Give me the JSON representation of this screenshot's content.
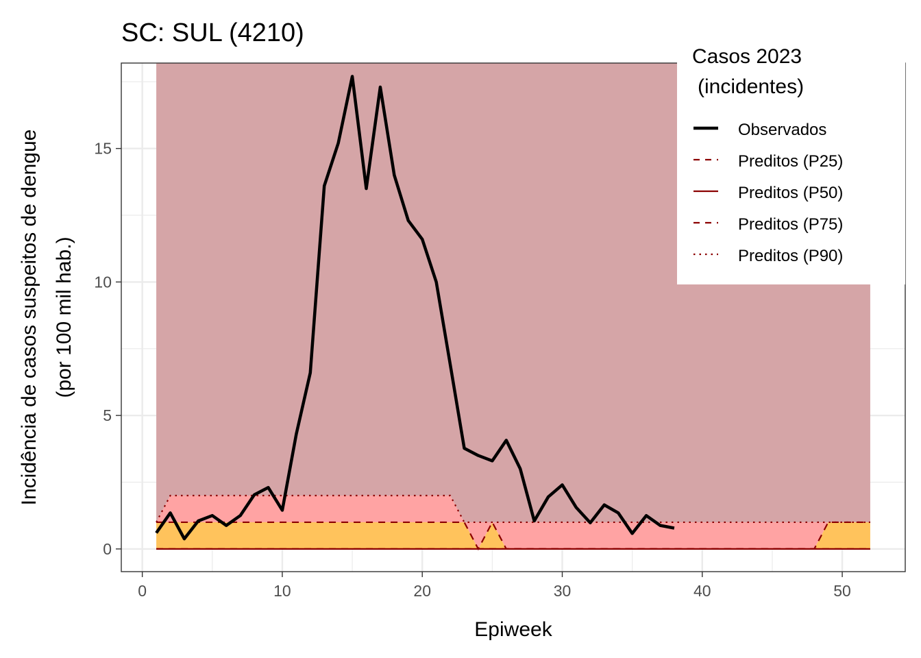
{
  "chart_data": {
    "type": "line",
    "title": "SC: SUL (4210)",
    "xlabel": "Epiweek",
    "ylabel": [
      "Incidência de casos suspeitos de dengue",
      "(por 100 mil hab.)"
    ],
    "xlim": [
      -1.5,
      54.5
    ],
    "ylim": [
      -0.85,
      18.2
    ],
    "x_ticks": [
      0,
      10,
      20,
      30,
      40,
      50
    ],
    "y_ticks": [
      0,
      5,
      10,
      15
    ],
    "grid": true,
    "legend": {
      "title": [
        "Casos 2023",
        "(incidentes)"
      ],
      "position": "top-right",
      "entries": [
        {
          "label": "Observados",
          "color": "#000000",
          "style": "solid-thick"
        },
        {
          "label": "Preditos (P25)",
          "color": "#8b0000",
          "style": "dashed"
        },
        {
          "label": "Preditos (P50)",
          "color": "#8b0000",
          "style": "solid"
        },
        {
          "label": "Preditos (P75)",
          "color": "#8b0000",
          "style": "dashed"
        },
        {
          "label": "Preditos (P90)",
          "color": "#8b0000",
          "style": "dotted"
        }
      ]
    },
    "colors": {
      "band_upper": "#d5a5a7",
      "band_p75_p90": "#ffa3a3",
      "band_p25_p75": "#ffc35c",
      "predicted_lines": "#8b0000",
      "observed": "#000000"
    },
    "weeks": [
      1,
      2,
      3,
      4,
      5,
      6,
      7,
      8,
      9,
      10,
      11,
      12,
      13,
      14,
      15,
      16,
      17,
      18,
      19,
      20,
      21,
      22,
      23,
      24,
      25,
      26,
      27,
      28,
      29,
      30,
      31,
      32,
      33,
      34,
      35,
      36,
      37,
      38,
      39,
      40,
      41,
      42,
      43,
      44,
      45,
      46,
      47,
      48,
      49,
      50,
      51,
      52
    ],
    "series": [
      {
        "name": "Observados",
        "x": [
          1,
          2,
          3,
          4,
          5,
          6,
          7,
          8,
          9,
          10,
          11,
          12,
          13,
          14,
          15,
          16,
          17,
          18,
          19,
          20,
          21,
          22,
          23,
          24,
          25,
          26,
          27,
          28,
          29,
          30,
          31,
          32,
          33,
          34,
          35,
          36,
          37,
          38
        ],
        "values": [
          0.6,
          1.35,
          0.38,
          1.05,
          1.25,
          0.88,
          1.25,
          2.03,
          2.3,
          1.45,
          4.3,
          6.6,
          13.6,
          15.2,
          17.7,
          13.5,
          17.3,
          14.0,
          12.3,
          11.6,
          10.0,
          6.9,
          3.77,
          3.5,
          3.3,
          4.07,
          3.0,
          1.05,
          1.95,
          2.4,
          1.55,
          0.98,
          1.65,
          1.35,
          0.58,
          1.25,
          0.88,
          0.78
        ]
      },
      {
        "name": "Preditos (P25)",
        "values": [
          0,
          0,
          0,
          0,
          0,
          0,
          0,
          0,
          0,
          0,
          0,
          0,
          0,
          0,
          0,
          0,
          0,
          0,
          0,
          0,
          0,
          0,
          0,
          0,
          0,
          0,
          0,
          0,
          0,
          0,
          0,
          0,
          0,
          0,
          0,
          0,
          0,
          0,
          0,
          0,
          0,
          0,
          0,
          0,
          0,
          0,
          0,
          0,
          0,
          0,
          0,
          0
        ]
      },
      {
        "name": "Preditos (P50)",
        "values": [
          0,
          0,
          0,
          0,
          0,
          0,
          0,
          0,
          0,
          0,
          0,
          0,
          0,
          0,
          0,
          0,
          0,
          0,
          0,
          0,
          0,
          0,
          0,
          0,
          0,
          0,
          0,
          0,
          0,
          0,
          0,
          0,
          0,
          0,
          0,
          0,
          0,
          0,
          0,
          0,
          0,
          0,
          0,
          0,
          0,
          0,
          0,
          0,
          0,
          0,
          0,
          0
        ]
      },
      {
        "name": "Preditos (P75)",
        "values": [
          1,
          1,
          1,
          1,
          1,
          1,
          1,
          1,
          1,
          1,
          1,
          1,
          1,
          1,
          1,
          1,
          1,
          1,
          1,
          1,
          1,
          1,
          1,
          0,
          1,
          0,
          0,
          0,
          0,
          0,
          0,
          0,
          0,
          0,
          0,
          0,
          0,
          0,
          0,
          0,
          0,
          0,
          0,
          0,
          0,
          0,
          0,
          0,
          1,
          1,
          1,
          1
        ]
      },
      {
        "name": "Preditos (P90)",
        "values": [
          1,
          2,
          2,
          2,
          2,
          2,
          2,
          2,
          2,
          2,
          2,
          2,
          2,
          2,
          2,
          2,
          2,
          2,
          2,
          2,
          2,
          2,
          1,
          1,
          1,
          1,
          1,
          1,
          1,
          1,
          1,
          1,
          1,
          1,
          1,
          1,
          1,
          1,
          1,
          1,
          1,
          1,
          1,
          1,
          1,
          1,
          1,
          1,
          1,
          1,
          1,
          1
        ]
      }
    ]
  }
}
